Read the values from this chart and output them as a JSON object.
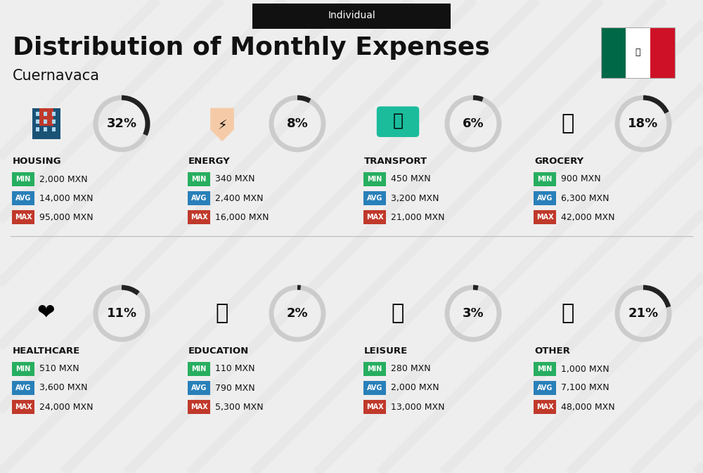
{
  "title": "Distribution of Monthly Expenses",
  "subtitle": "Individual",
  "city": "Cuernavaca",
  "bg_color": "#eeeeee",
  "categories": [
    {
      "name": "HOUSING",
      "pct": 32,
      "min": "2,000 MXN",
      "avg": "14,000 MXN",
      "max": "95,000 MXN",
      "row": 0,
      "col": 0
    },
    {
      "name": "ENERGY",
      "pct": 8,
      "min": "340 MXN",
      "avg": "2,400 MXN",
      "max": "16,000 MXN",
      "row": 0,
      "col": 1
    },
    {
      "name": "TRANSPORT",
      "pct": 6,
      "min": "450 MXN",
      "avg": "3,200 MXN",
      "max": "21,000 MXN",
      "row": 0,
      "col": 2
    },
    {
      "name": "GROCERY",
      "pct": 18,
      "min": "900 MXN",
      "avg": "6,300 MXN",
      "max": "42,000 MXN",
      "row": 0,
      "col": 3
    },
    {
      "name": "HEALTHCARE",
      "pct": 11,
      "min": "510 MXN",
      "avg": "3,600 MXN",
      "max": "24,000 MXN",
      "row": 1,
      "col": 0
    },
    {
      "name": "EDUCATION",
      "pct": 2,
      "min": "110 MXN",
      "avg": "790 MXN",
      "max": "5,300 MXN",
      "row": 1,
      "col": 1
    },
    {
      "name": "LEISURE",
      "pct": 3,
      "min": "280 MXN",
      "avg": "2,000 MXN",
      "max": "13,000 MXN",
      "row": 1,
      "col": 2
    },
    {
      "name": "OTHER",
      "pct": 21,
      "min": "1,000 MXN",
      "avg": "7,100 MXN",
      "max": "48,000 MXN",
      "row": 1,
      "col": 3
    }
  ],
  "color_min": "#27ae60",
  "color_avg": "#2980b9",
  "color_max": "#c0392b",
  "color_dark": "#111111",
  "donut_dark": "#222222",
  "donut_light": "#cccccc",
  "stripe_color": "#e4e4e4",
  "icon_colors": {
    "HOUSING": "#2255cc",
    "ENERGY": "#f0a500",
    "TRANSPORT": "#00aacc",
    "GROCERY": "#cc6600",
    "HEALTHCARE": "#cc2244",
    "EDUCATION": "#226600",
    "LEISURE": "#cc3300",
    "OTHER": "#996633"
  }
}
